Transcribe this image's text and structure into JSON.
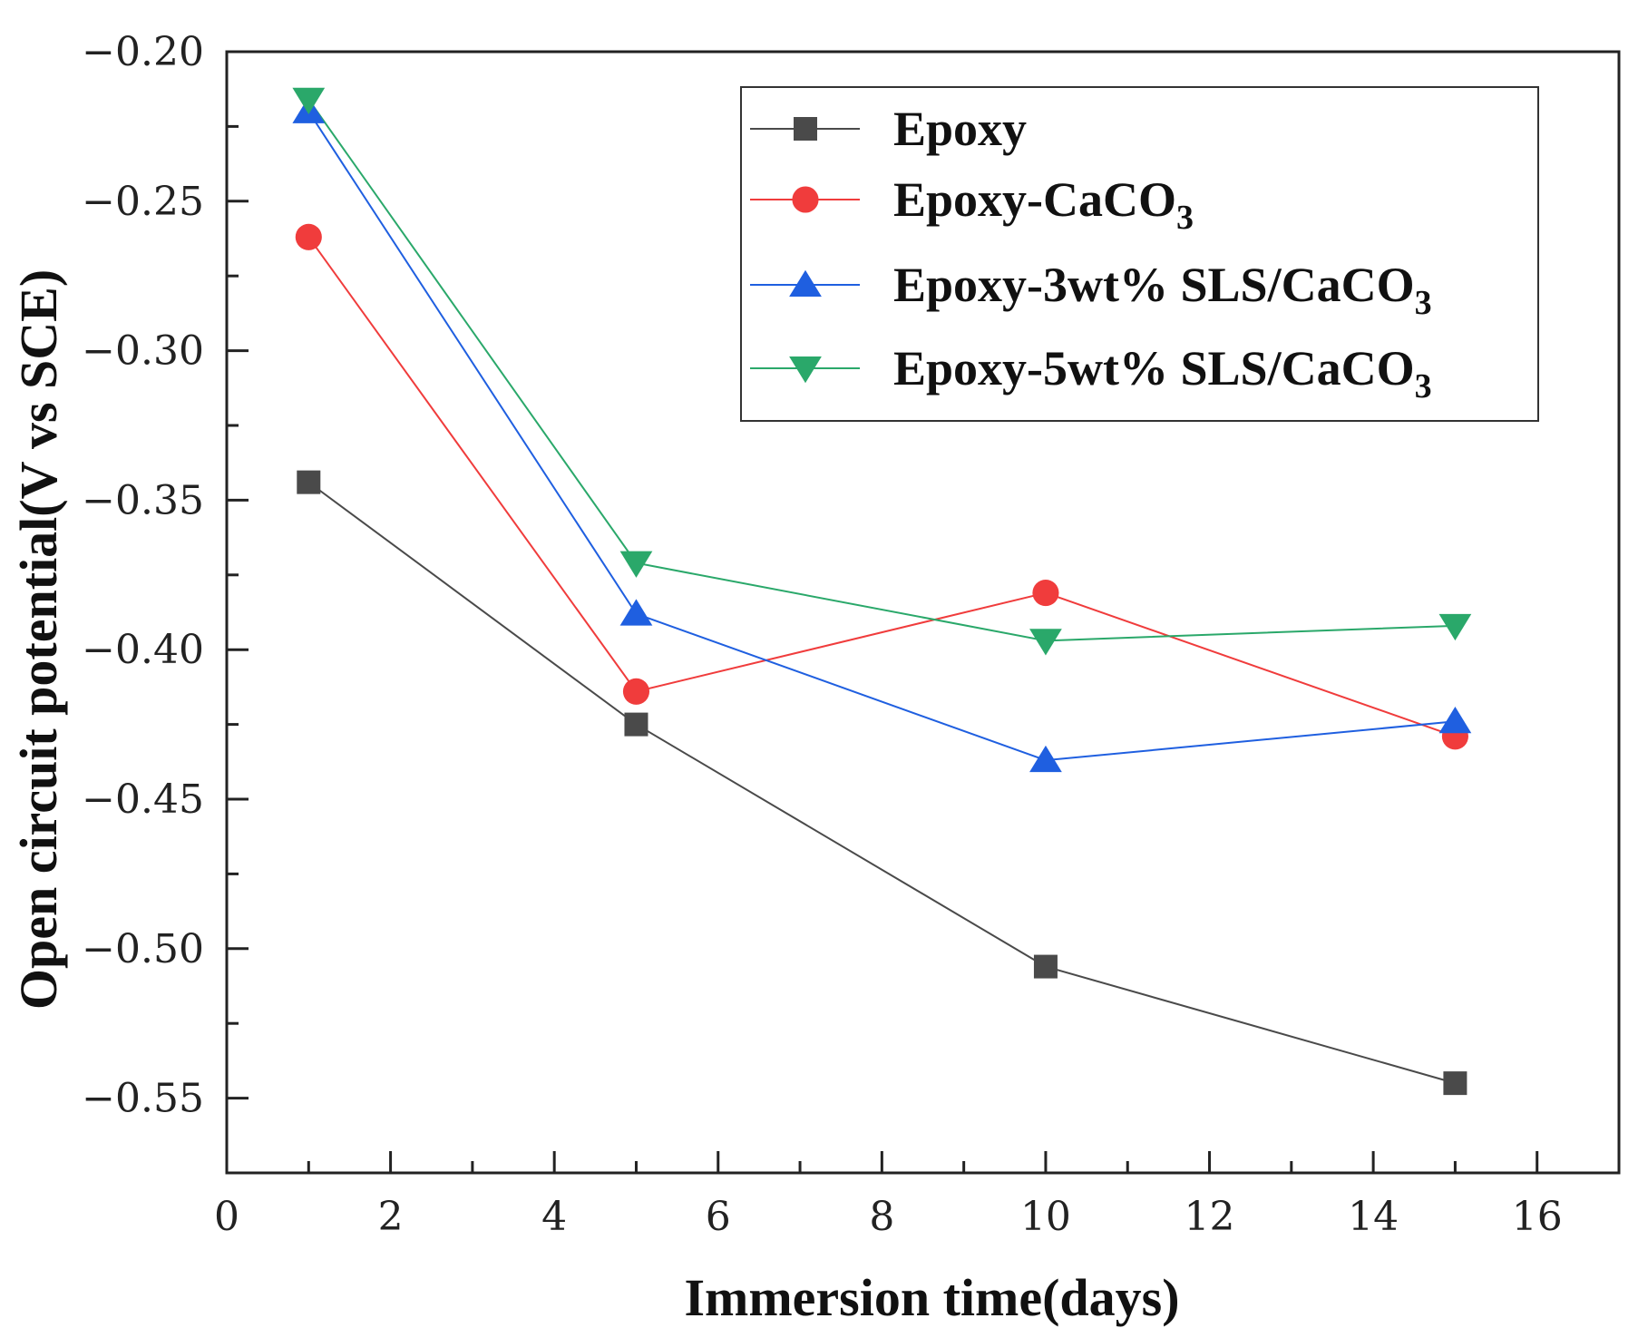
{
  "chart_data": {
    "type": "line",
    "xlabel": "Immersion time(days)",
    "ylabel": "Open circuit potential(V vs SCE)",
    "xlim": [
      0,
      17
    ],
    "ylim": [
      -0.575,
      -0.2
    ],
    "xticks": [
      0,
      2,
      4,
      6,
      8,
      10,
      12,
      14,
      16
    ],
    "xtick_labels": [
      "0",
      "2",
      "4",
      "6",
      "8",
      "10",
      "12",
      "14",
      "16"
    ],
    "yticks": [
      -0.2,
      -0.25,
      -0.3,
      -0.35,
      -0.4,
      -0.45,
      -0.5,
      -0.55
    ],
    "ytick_labels": [
      "−0.20",
      "−0.25",
      "−0.30",
      "−0.35",
      "−0.40",
      "−0.45",
      "−0.50",
      "−0.55"
    ],
    "grid": false,
    "legend_position": "top-right",
    "x": [
      1,
      5,
      10,
      15
    ],
    "series": [
      {
        "name": "Epoxy",
        "sub": "",
        "values": [
          -0.344,
          -0.425,
          -0.506,
          -0.545
        ],
        "color": "#4a4a4a",
        "marker": "square"
      },
      {
        "name": "Epoxy-CaCO",
        "sub": "3",
        "values": [
          -0.262,
          -0.414,
          -0.381,
          -0.429
        ],
        "color": "#f03c3c",
        "marker": "circle"
      },
      {
        "name": "Epoxy-3wt% SLS/CaCO",
        "sub": "3",
        "values": [
          -0.22,
          -0.388,
          -0.437,
          -0.424
        ],
        "color": "#1f5fe0",
        "marker": "triangle-up"
      },
      {
        "name": "Epoxy-5wt% SLS/CaCO",
        "sub": "3",
        "values": [
          -0.216,
          -0.371,
          -0.397,
          -0.392
        ],
        "color": "#2aa86a",
        "marker": "triangle-down"
      }
    ]
  }
}
